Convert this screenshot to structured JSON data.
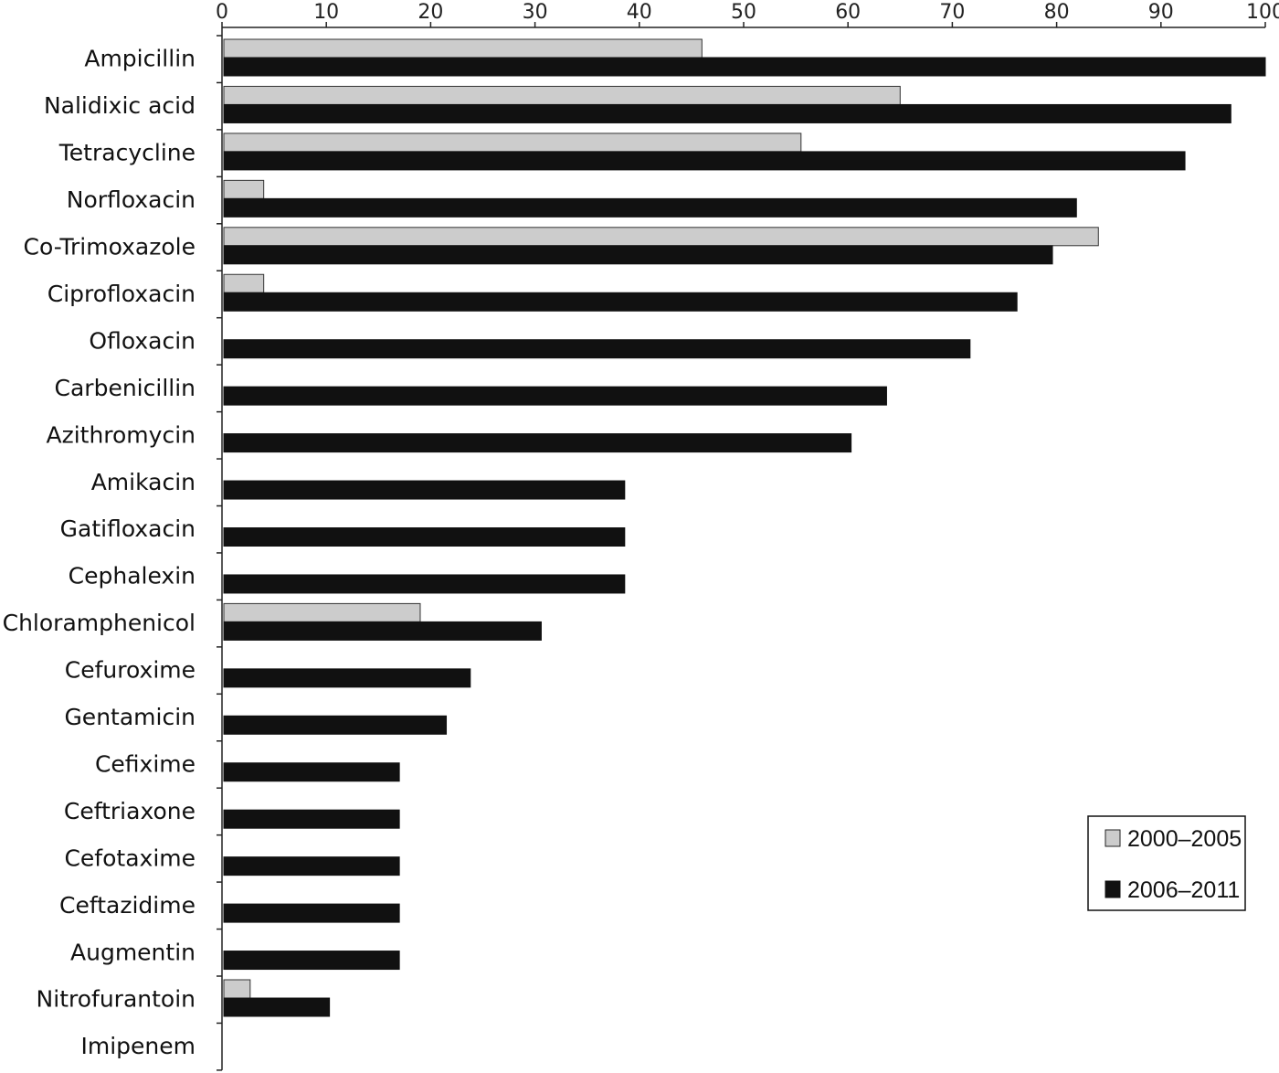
{
  "chart_data": {
    "type": "bar",
    "orientation": "horizontal",
    "categories": [
      "Ampicillin",
      "Nalidixic acid",
      "Tetracycline",
      "Norfloxacin",
      "Co-Trimoxazole",
      "Ciprofloxacin",
      "Ofloxacin",
      "Carbenicillin",
      "Azithromycin",
      "Amikacin",
      "Gatifloxacin",
      "Cephalexin",
      "Chloramphenicol",
      "Cefuroxime",
      "Gentamicin",
      "Cefixime",
      "Ceftriaxone",
      "Cefotaxime",
      "Ceftazidime",
      "Augmentin",
      "Nitrofurantoin",
      "Imipenem"
    ],
    "series": [
      {
        "name": "2000–2005",
        "color": "#cccccc",
        "values": [
          46,
          65,
          55.5,
          4,
          84,
          4,
          null,
          null,
          null,
          null,
          null,
          null,
          19,
          null,
          null,
          null,
          null,
          null,
          null,
          null,
          2.7,
          null
        ]
      },
      {
        "name": "2006–2011",
        "color": "#111111",
        "values": [
          100,
          96.7,
          92.3,
          81.9,
          79.6,
          76.2,
          71.7,
          63.7,
          60.3,
          38.6,
          38.6,
          38.6,
          30.6,
          23.8,
          21.5,
          17,
          17,
          17,
          17,
          17,
          10.3,
          0
        ]
      }
    ],
    "xlim": [
      0,
      100
    ],
    "xticks": [
      0,
      10,
      20,
      30,
      40,
      50,
      60,
      70,
      80,
      90,
      100
    ],
    "xaxis_position": "top",
    "grid": false,
    "legend_position": "bottom-right",
    "title": "",
    "xlabel": "",
    "ylabel": ""
  }
}
